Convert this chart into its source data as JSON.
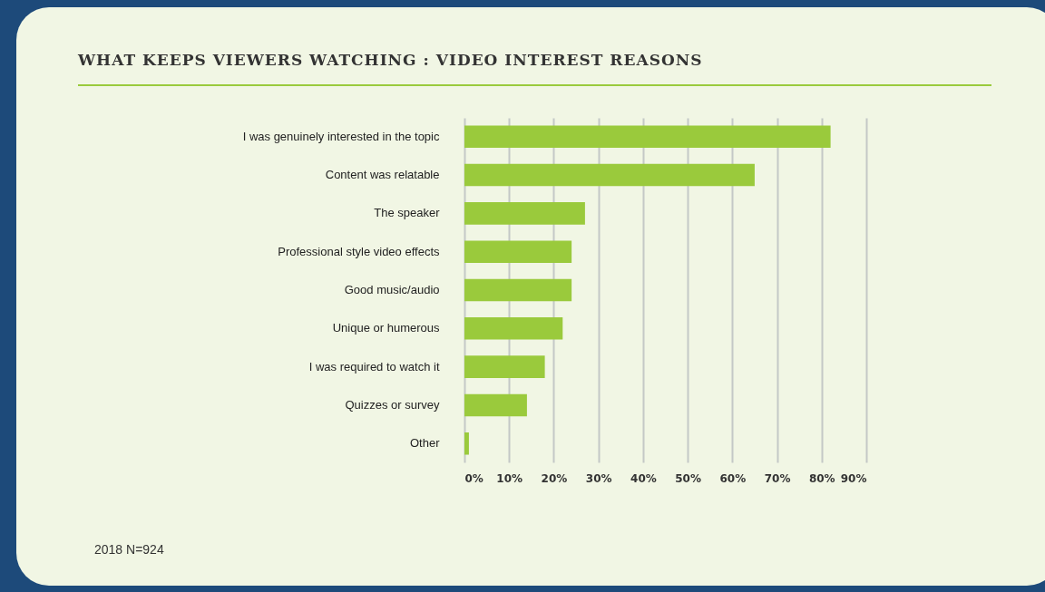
{
  "chart_data": {
    "type": "bar",
    "orientation": "horizontal",
    "title": "WHAT KEEPS VIEWERS WATCHING : VIDEO INTEREST REASONS",
    "categories": [
      "I was genuinely interested in the topic",
      "Content was relatable",
      "The speaker",
      "Professional style video effects",
      "Good music/audio",
      "Unique or humerous",
      "I was required to watch it",
      "Quizzes or survey",
      "Other"
    ],
    "values": [
      82,
      65,
      27,
      24,
      24,
      22,
      18,
      14,
      1
    ],
    "color": "#9aca3c",
    "xlim": [
      0,
      90
    ],
    "xticks": [
      {
        "value": 0,
        "label": "0%"
      },
      {
        "value": 10,
        "label": "10%"
      },
      {
        "value": 20,
        "label": "20%"
      },
      {
        "value": 30,
        "label": "30%"
      },
      {
        "value": 40,
        "label": "40%"
      },
      {
        "value": 50,
        "label": "50%"
      },
      {
        "value": 60,
        "label": "60%"
      },
      {
        "value": 70,
        "label": "70%"
      },
      {
        "value": 80,
        "label": "80%"
      },
      {
        "value": 90,
        "label": "90%"
      }
    ],
    "grid": "x",
    "annotations": [
      "2018 N=924"
    ]
  }
}
